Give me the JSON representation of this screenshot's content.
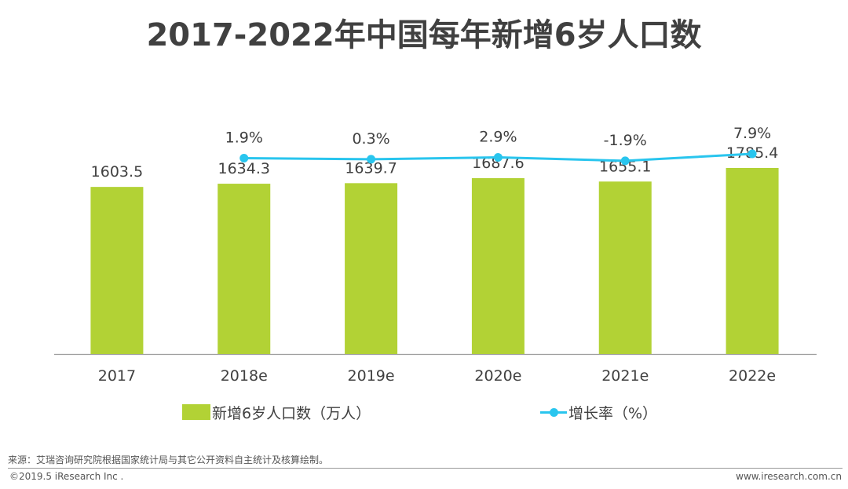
{
  "page": {
    "title": "2017-2022年中国每年新增6岁人口数",
    "source_note": "来源：艾瑞咨询研究院根据国家统计局与其它公开资料自主统计及核算绘制。",
    "copyright": "©2019.5 iResearch Inc .",
    "website": "www.iresearch.com.cn"
  },
  "chart_data": {
    "type": "bar",
    "title": "2017-2022年中国每年新增6岁人口数",
    "categories": [
      "2017",
      "2018e",
      "2019e",
      "2020e",
      "2021e",
      "2022e"
    ],
    "series": [
      {
        "name": "新增6岁人口数（万人）",
        "type": "bar",
        "values": [
          1603.5,
          1634.3,
          1639.7,
          1687.6,
          1655.1,
          1785.4
        ],
        "labels": [
          "1603.5",
          "1634.3",
          "1639.7",
          "1687.6",
          "1655.1",
          "1785.4"
        ],
        "color": "#b2d235",
        "ylim": [
          0,
          1785.4
        ]
      },
      {
        "name": "增长率（%）",
        "type": "line",
        "values": [
          null,
          1.9,
          0.3,
          2.9,
          -1.9,
          7.9
        ],
        "labels": [
          null,
          "1.9%",
          "0.3%",
          "2.9%",
          "-1.9%",
          "7.9%"
        ],
        "color": "#29c5ee",
        "ylim": [
          -35,
          75
        ]
      }
    ],
    "legend": "bottom",
    "xlabel": "",
    "ylabel": "",
    "grid": false
  }
}
